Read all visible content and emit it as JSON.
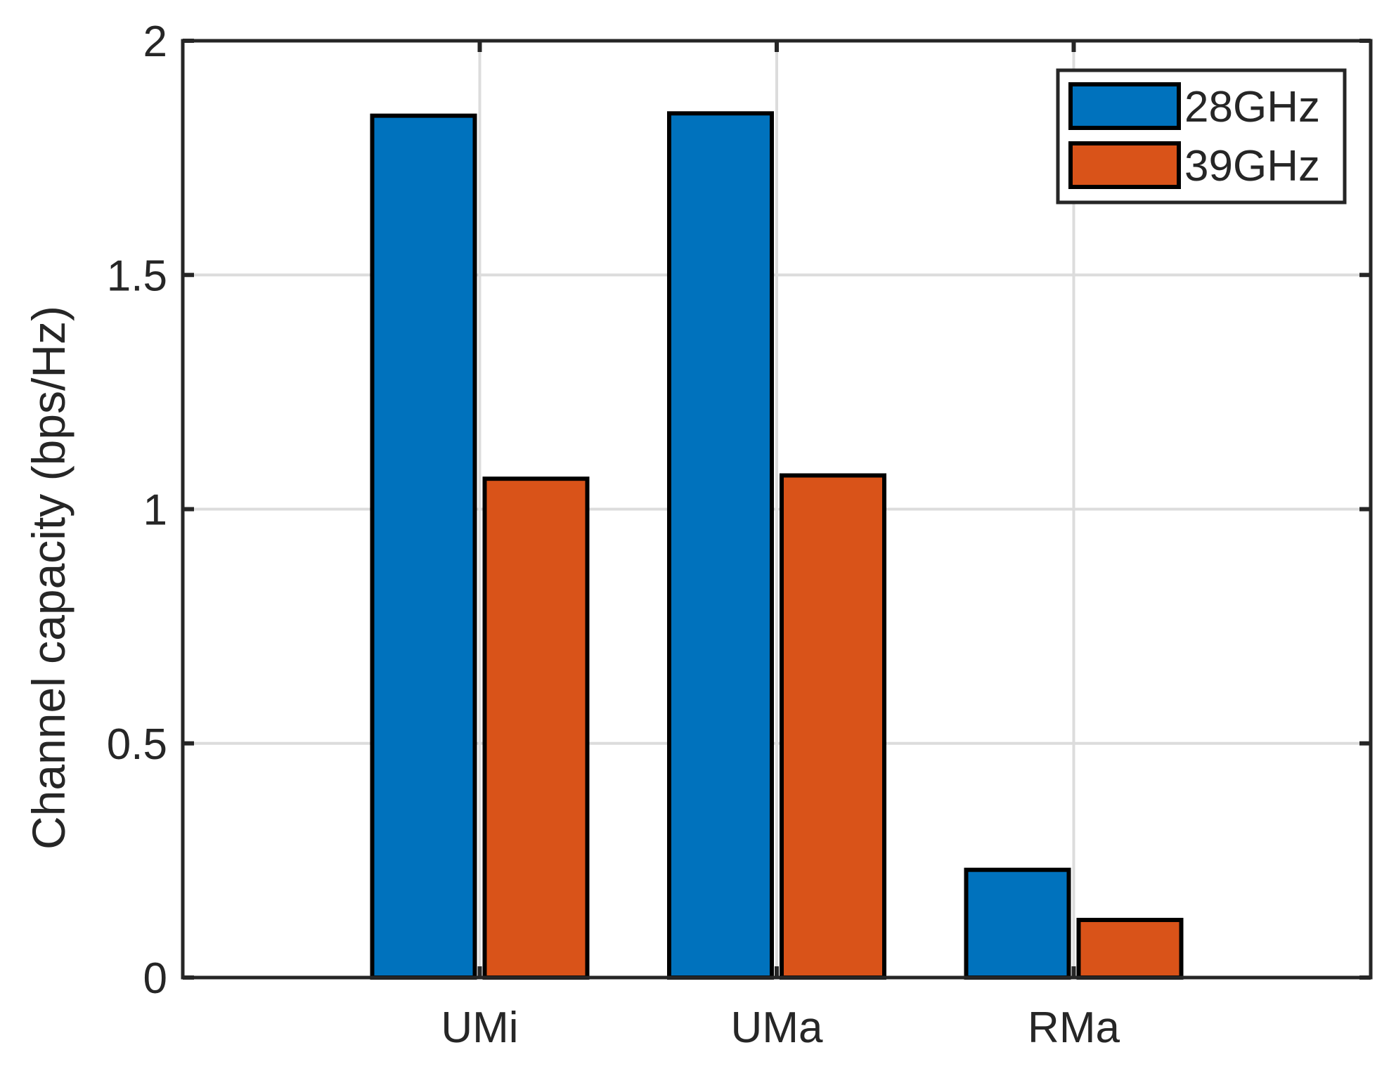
{
  "chart_data": {
    "type": "bar",
    "title": "",
    "xlabel": "",
    "ylabel": "Channel capacity (bps/Hz)",
    "categories": [
      "UMi",
      "UMa",
      "RMa"
    ],
    "series": [
      {
        "name": "28GHz",
        "color": "#0072BD",
        "values": [
          1.84,
          1.845,
          0.23
        ]
      },
      {
        "name": "39GHz",
        "color": "#D95319",
        "values": [
          1.065,
          1.072,
          0.123
        ]
      }
    ],
    "ylim": [
      0,
      2
    ],
    "yticks": [
      "0",
      "0.5",
      "1",
      "1.5",
      "2"
    ],
    "grid": true,
    "legend_position": "top-right"
  }
}
